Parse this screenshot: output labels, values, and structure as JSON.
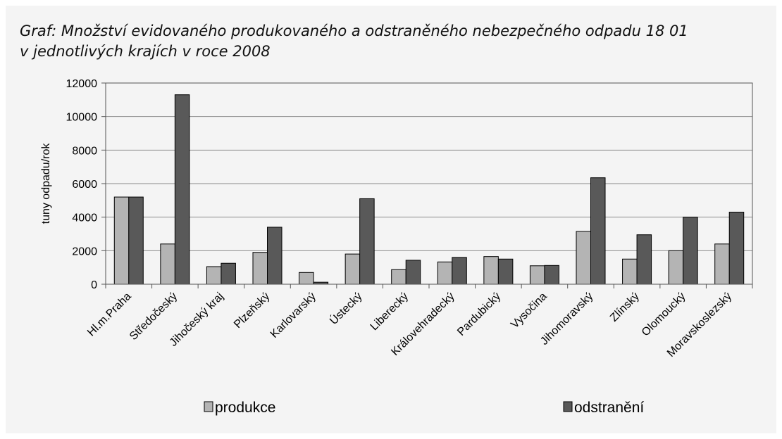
{
  "chart_data": {
    "type": "bar",
    "title_line1": "Graf: Množství evidovaného produkovaného a odstraněného nebezpečného odpadu 18 01",
    "title_line2": "v jednotlivých krajích v roce 2008",
    "xlabel": "",
    "ylabel": "tuny odpadu/rok",
    "ylim": [
      0,
      12000
    ],
    "yticks": [
      0,
      2000,
      4000,
      6000,
      8000,
      10000,
      12000
    ],
    "grid": true,
    "legend_position": "bottom",
    "categories": [
      "Hl.m.Praha",
      "Středočeský",
      "Jihočeský kraj",
      "Plzeňský",
      "Karlovarský",
      "Ústecký",
      "Liberecký",
      "Královehradecký",
      "Pardubický",
      "Vysočina",
      "Jihomoravský",
      "Zlínský",
      "Olomoucký",
      "Moravskoslezský"
    ],
    "series": [
      {
        "name": "produkce",
        "color": "#b4b4b4",
        "values": [
          5200,
          2400,
          1050,
          1900,
          700,
          1800,
          870,
          1330,
          1650,
          1100,
          3150,
          1500,
          2000,
          2400
        ]
      },
      {
        "name": "odstranění",
        "color": "#595959",
        "values": [
          5200,
          11300,
          1250,
          3400,
          120,
          5100,
          1430,
          1600,
          1500,
          1120,
          6350,
          2950,
          4000,
          4300
        ]
      }
    ]
  }
}
